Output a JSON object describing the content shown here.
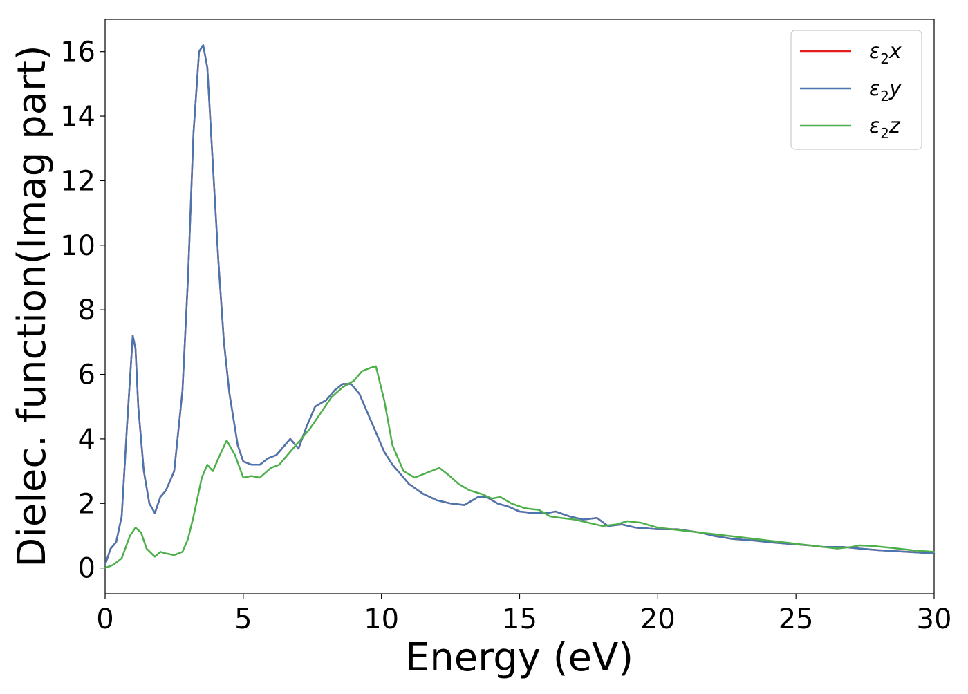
{
  "chart_data": {
    "type": "line",
    "title": "",
    "xlabel": "Energy (eV)",
    "ylabel": "Dielec. function(Imag part)",
    "xlim": [
      0,
      30
    ],
    "ylim": [
      -0.8,
      17
    ],
    "xticks": [
      0,
      5,
      10,
      15,
      20,
      25,
      30
    ],
    "yticks": [
      0,
      2,
      4,
      6,
      8,
      10,
      12,
      14,
      16
    ],
    "grid": false,
    "legend_position": "top-right",
    "series": [
      {
        "name": "ε₂x",
        "label_base": "ε",
        "label_sub": "2",
        "label_suffix": "x",
        "color": "#e41a1c",
        "x": [
          0,
          0.2,
          0.4,
          0.6,
          0.8,
          1.0,
          1.1,
          1.2,
          1.4,
          1.6,
          1.8,
          2.0,
          2.2,
          2.5,
          2.8,
          3.0,
          3.2,
          3.4,
          3.55,
          3.7,
          3.9,
          4.1,
          4.3,
          4.5,
          4.8,
          5.0,
          5.3,
          5.6,
          5.9,
          6.2,
          6.5,
          6.7,
          7.0,
          7.3,
          7.6,
          8.0,
          8.3,
          8.6,
          8.9,
          9.2,
          9.5,
          9.8,
          10.1,
          10.4,
          10.7,
          11.0,
          11.5,
          12.0,
          12.5,
          13.0,
          13.5,
          13.8,
          14.2,
          14.6,
          15.0,
          15.5,
          16.0,
          16.3,
          16.8,
          17.3,
          17.8,
          18.2,
          18.7,
          19.2,
          20.0,
          20.7,
          21.5,
          22.0,
          22.7,
          23.5,
          24.0,
          24.7,
          25.5,
          26.0,
          26.7,
          27.3,
          28.0,
          29.0,
          30.0
        ],
        "values": [
          0.1,
          0.6,
          0.8,
          1.6,
          4.5,
          7.2,
          6.8,
          5.0,
          3.0,
          2.0,
          1.7,
          2.2,
          2.4,
          3.0,
          5.5,
          9.0,
          13.5,
          16.0,
          16.2,
          15.5,
          12.5,
          9.5,
          7.0,
          5.4,
          3.8,
          3.3,
          3.2,
          3.2,
          3.4,
          3.5,
          3.8,
          4.0,
          3.7,
          4.4,
          5.0,
          5.2,
          5.5,
          5.7,
          5.7,
          5.4,
          4.8,
          4.2,
          3.6,
          3.2,
          2.9,
          2.6,
          2.3,
          2.1,
          2.0,
          1.95,
          2.2,
          2.2,
          2.0,
          1.9,
          1.75,
          1.7,
          1.7,
          1.75,
          1.6,
          1.5,
          1.55,
          1.3,
          1.35,
          1.25,
          1.2,
          1.2,
          1.1,
          1.0,
          0.9,
          0.85,
          0.8,
          0.75,
          0.7,
          0.65,
          0.65,
          0.6,
          0.55,
          0.5,
          0.45
        ]
      },
      {
        "name": "ε₂y",
        "label_base": "ε",
        "label_sub": "2",
        "label_suffix": "y",
        "color": "#4a76b0",
        "x": [
          0,
          0.2,
          0.4,
          0.6,
          0.8,
          1.0,
          1.1,
          1.2,
          1.4,
          1.6,
          1.8,
          2.0,
          2.2,
          2.5,
          2.8,
          3.0,
          3.2,
          3.4,
          3.55,
          3.7,
          3.9,
          4.1,
          4.3,
          4.5,
          4.8,
          5.0,
          5.3,
          5.6,
          5.9,
          6.2,
          6.5,
          6.7,
          7.0,
          7.3,
          7.6,
          8.0,
          8.3,
          8.6,
          8.9,
          9.2,
          9.5,
          9.8,
          10.1,
          10.4,
          10.7,
          11.0,
          11.5,
          12.0,
          12.5,
          13.0,
          13.5,
          13.8,
          14.2,
          14.6,
          15.0,
          15.5,
          16.0,
          16.3,
          16.8,
          17.3,
          17.8,
          18.2,
          18.7,
          19.2,
          20.0,
          20.7,
          21.5,
          22.0,
          22.7,
          23.5,
          24.0,
          24.7,
          25.5,
          26.0,
          26.7,
          27.3,
          28.0,
          29.0,
          30.0
        ],
        "values": [
          0.1,
          0.6,
          0.8,
          1.6,
          4.5,
          7.2,
          6.8,
          5.0,
          3.0,
          2.0,
          1.7,
          2.2,
          2.4,
          3.0,
          5.5,
          9.0,
          13.5,
          16.0,
          16.2,
          15.5,
          12.5,
          9.5,
          7.0,
          5.4,
          3.8,
          3.3,
          3.2,
          3.2,
          3.4,
          3.5,
          3.8,
          4.0,
          3.7,
          4.4,
          5.0,
          5.2,
          5.5,
          5.7,
          5.7,
          5.4,
          4.8,
          4.2,
          3.6,
          3.2,
          2.9,
          2.6,
          2.3,
          2.1,
          2.0,
          1.95,
          2.2,
          2.2,
          2.0,
          1.9,
          1.75,
          1.7,
          1.7,
          1.75,
          1.6,
          1.5,
          1.55,
          1.3,
          1.35,
          1.25,
          1.2,
          1.2,
          1.1,
          1.0,
          0.9,
          0.85,
          0.8,
          0.75,
          0.7,
          0.65,
          0.65,
          0.6,
          0.55,
          0.5,
          0.45
        ]
      },
      {
        "name": "ε₂z",
        "label_base": "ε",
        "label_sub": "2",
        "label_suffix": "z",
        "color": "#4daf4a",
        "x": [
          0,
          0.3,
          0.6,
          0.9,
          1.1,
          1.3,
          1.5,
          1.8,
          2.0,
          2.2,
          2.5,
          2.8,
          3.0,
          3.2,
          3.5,
          3.7,
          3.9,
          4.1,
          4.4,
          4.7,
          5.0,
          5.3,
          5.6,
          6.0,
          6.3,
          6.6,
          7.0,
          7.4,
          7.8,
          8.2,
          8.6,
          9.0,
          9.3,
          9.6,
          9.8,
          10.1,
          10.4,
          10.8,
          11.2,
          11.5,
          11.8,
          12.1,
          12.4,
          12.8,
          13.2,
          13.6,
          14.0,
          14.3,
          14.7,
          15.2,
          15.7,
          16.1,
          16.5,
          17.0,
          17.5,
          18.0,
          18.5,
          18.9,
          19.4,
          20.0,
          20.5,
          21.0,
          21.5,
          22.0,
          22.5,
          23.0,
          23.5,
          24.0,
          24.5,
          25.0,
          25.5,
          26.0,
          26.5,
          27.0,
          27.3,
          27.8,
          28.5,
          29.2,
          30.0
        ],
        "values": [
          0.0,
          0.1,
          0.3,
          1.0,
          1.25,
          1.1,
          0.6,
          0.35,
          0.5,
          0.45,
          0.4,
          0.5,
          0.9,
          1.6,
          2.8,
          3.2,
          3.0,
          3.4,
          3.95,
          3.5,
          2.8,
          2.85,
          2.8,
          3.1,
          3.2,
          3.5,
          3.9,
          4.3,
          4.8,
          5.3,
          5.6,
          5.8,
          6.1,
          6.2,
          6.25,
          5.2,
          3.8,
          3.0,
          2.8,
          2.9,
          3.0,
          3.1,
          2.9,
          2.6,
          2.4,
          2.3,
          2.15,
          2.2,
          2.0,
          1.85,
          1.8,
          1.6,
          1.55,
          1.5,
          1.4,
          1.3,
          1.35,
          1.45,
          1.4,
          1.25,
          1.2,
          1.15,
          1.1,
          1.05,
          1.0,
          0.95,
          0.9,
          0.85,
          0.8,
          0.75,
          0.7,
          0.65,
          0.6,
          0.65,
          0.7,
          0.68,
          0.62,
          0.55,
          0.5
        ]
      }
    ]
  }
}
